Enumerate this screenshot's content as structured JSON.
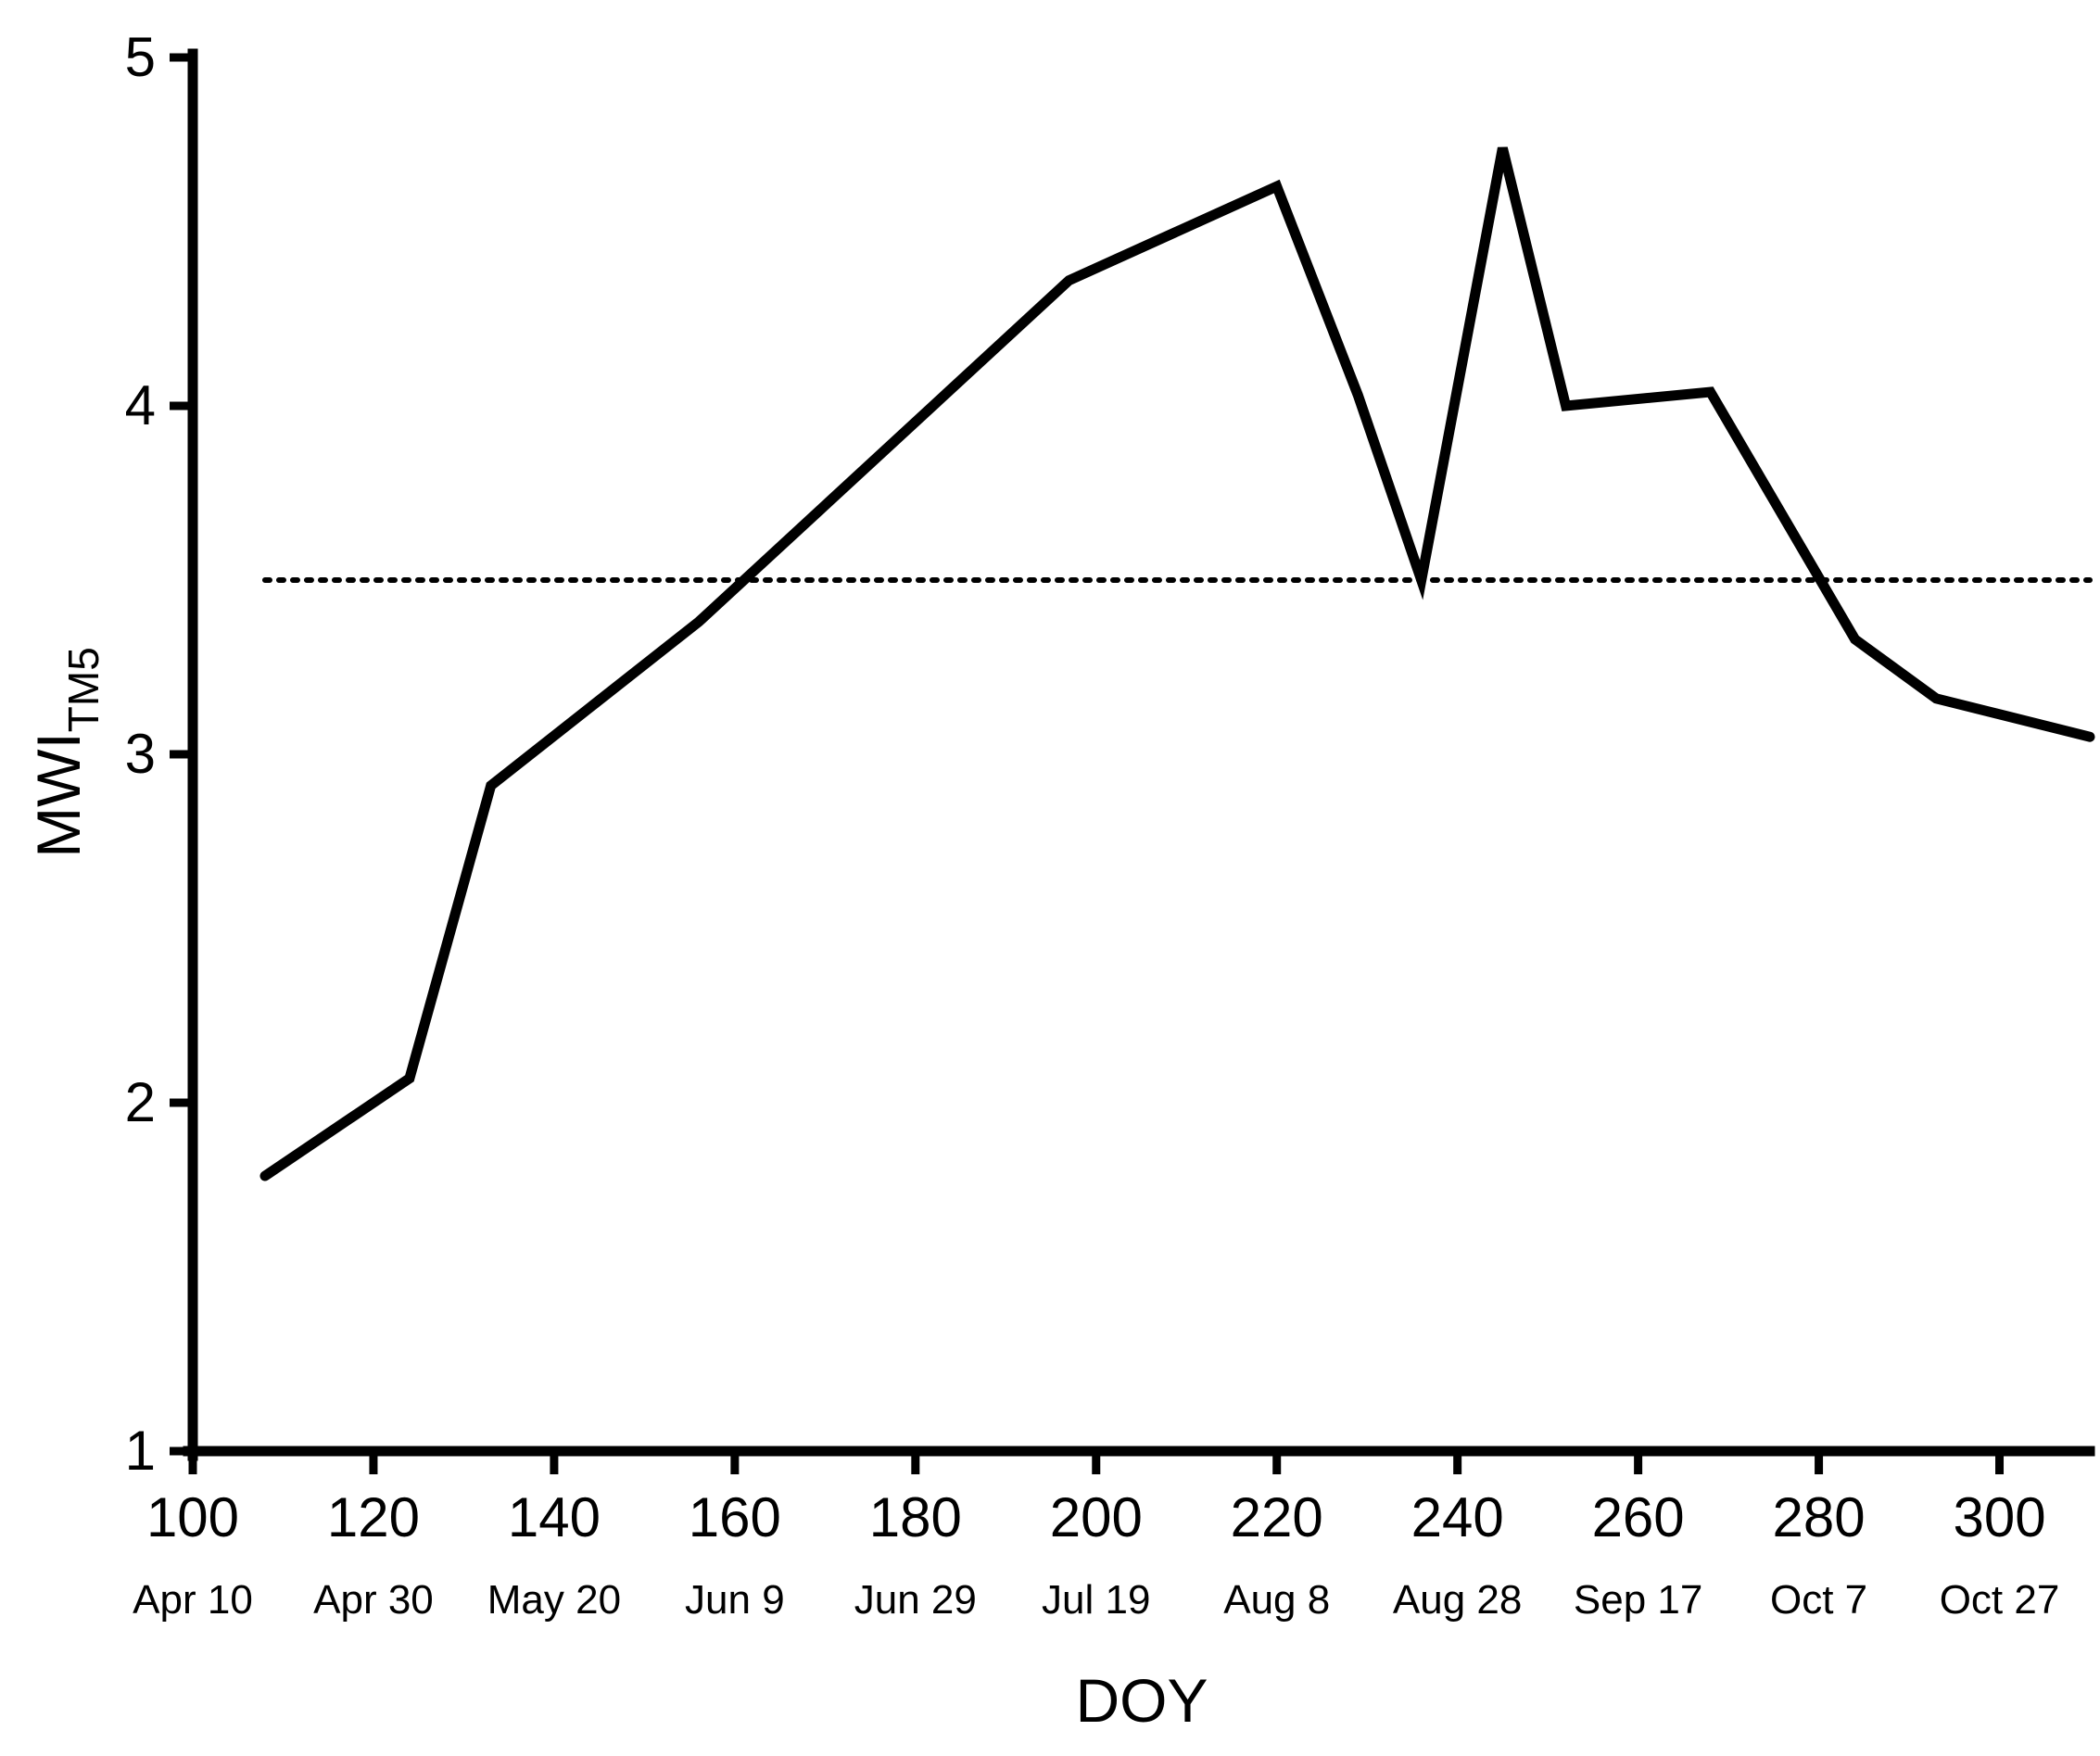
{
  "chart_data": {
    "type": "line",
    "xlabel": "DOY",
    "ylabel": {
      "main": "MWI",
      "subscript": "TM5"
    },
    "xlim": [
      100,
      310
    ],
    "ylim": [
      1,
      5
    ],
    "x_ticks": [
      {
        "value": 100,
        "label": "100",
        "date": "Apr 10"
      },
      {
        "value": 120,
        "label": "120",
        "date": "Apr 30"
      },
      {
        "value": 140,
        "label": "140",
        "date": "May 20"
      },
      {
        "value": 160,
        "label": "160",
        "date": "Jun 9"
      },
      {
        "value": 180,
        "label": "180",
        "date": "Jun 29"
      },
      {
        "value": 200,
        "label": "200",
        "date": "Jul 19"
      },
      {
        "value": 220,
        "label": "220",
        "date": "Aug 8"
      },
      {
        "value": 240,
        "label": "240",
        "date": "Aug 28"
      },
      {
        "value": 260,
        "label": "260",
        "date": "Sep 17"
      },
      {
        "value": 280,
        "label": "280",
        "date": "Oct 7"
      },
      {
        "value": 300,
        "label": "300",
        "date": "Oct 27"
      }
    ],
    "y_ticks": [
      {
        "value": 1,
        "label": "1"
      },
      {
        "value": 2,
        "label": "2"
      },
      {
        "value": 3,
        "label": "3"
      },
      {
        "value": 4,
        "label": "4"
      },
      {
        "value": 5,
        "label": "5"
      }
    ],
    "grid": false,
    "series": [
      {
        "color": "#000000",
        "points": [
          {
            "x": 108,
            "y": 1.79
          },
          {
            "x": 124,
            "y": 2.07
          },
          {
            "x": 133,
            "y": 2.91
          },
          {
            "x": 156,
            "y": 3.38
          },
          {
            "x": 197,
            "y": 4.36
          },
          {
            "x": 220,
            "y": 4.63
          },
          {
            "x": 229,
            "y": 4.03
          },
          {
            "x": 236,
            "y": 3.5
          },
          {
            "x": 245,
            "y": 4.74
          },
          {
            "x": 252,
            "y": 4.0
          },
          {
            "x": 268,
            "y": 4.04
          },
          {
            "x": 284,
            "y": 3.33
          },
          {
            "x": 293,
            "y": 3.16
          },
          {
            "x": 310,
            "y": 3.05
          }
        ]
      }
    ],
    "reference_line": {
      "y": 3.5,
      "style": "dotted",
      "color": "#000000",
      "x_start": 108,
      "x_end": 310
    }
  }
}
